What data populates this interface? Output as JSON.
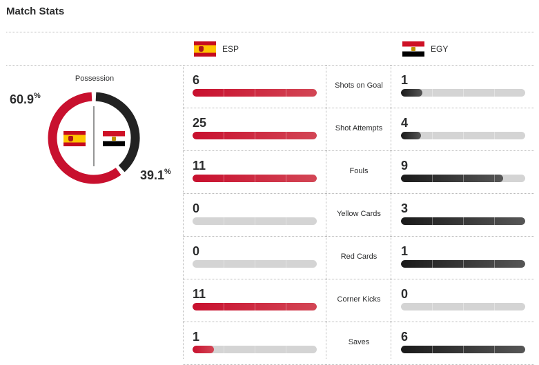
{
  "title": "Match Stats",
  "teams": {
    "home": {
      "abbr": "ESP",
      "flag_icon": "spain-flag-icon",
      "color": "#c8102e"
    },
    "away": {
      "abbr": "EGY",
      "flag_icon": "egypt-flag-icon",
      "color": "#2b2c2d"
    }
  },
  "possession": {
    "label": "Possession",
    "home_value": "60.9",
    "away_value": "39.1",
    "unit": "%",
    "home_fraction": 0.609,
    "away_fraction": 0.391
  },
  "stats": [
    {
      "label": "Shots on Goal",
      "home": "6",
      "away": "1",
      "home_fraction": 1.0,
      "away_fraction": 0.17
    },
    {
      "label": "Shot Attempts",
      "home": "25",
      "away": "4",
      "home_fraction": 1.0,
      "away_fraction": 0.16
    },
    {
      "label": "Fouls",
      "home": "11",
      "away": "9",
      "home_fraction": 1.0,
      "away_fraction": 0.82
    },
    {
      "label": "Yellow Cards",
      "home": "0",
      "away": "3",
      "home_fraction": 0.0,
      "away_fraction": 1.0
    },
    {
      "label": "Red Cards",
      "home": "0",
      "away": "1",
      "home_fraction": 0.0,
      "away_fraction": 1.0
    },
    {
      "label": "Corner Kicks",
      "home": "11",
      "away": "0",
      "home_fraction": 1.0,
      "away_fraction": 0.0
    },
    {
      "label": "Saves",
      "home": "1",
      "away": "6",
      "home_fraction": 0.17,
      "away_fraction": 1.0
    }
  ]
}
